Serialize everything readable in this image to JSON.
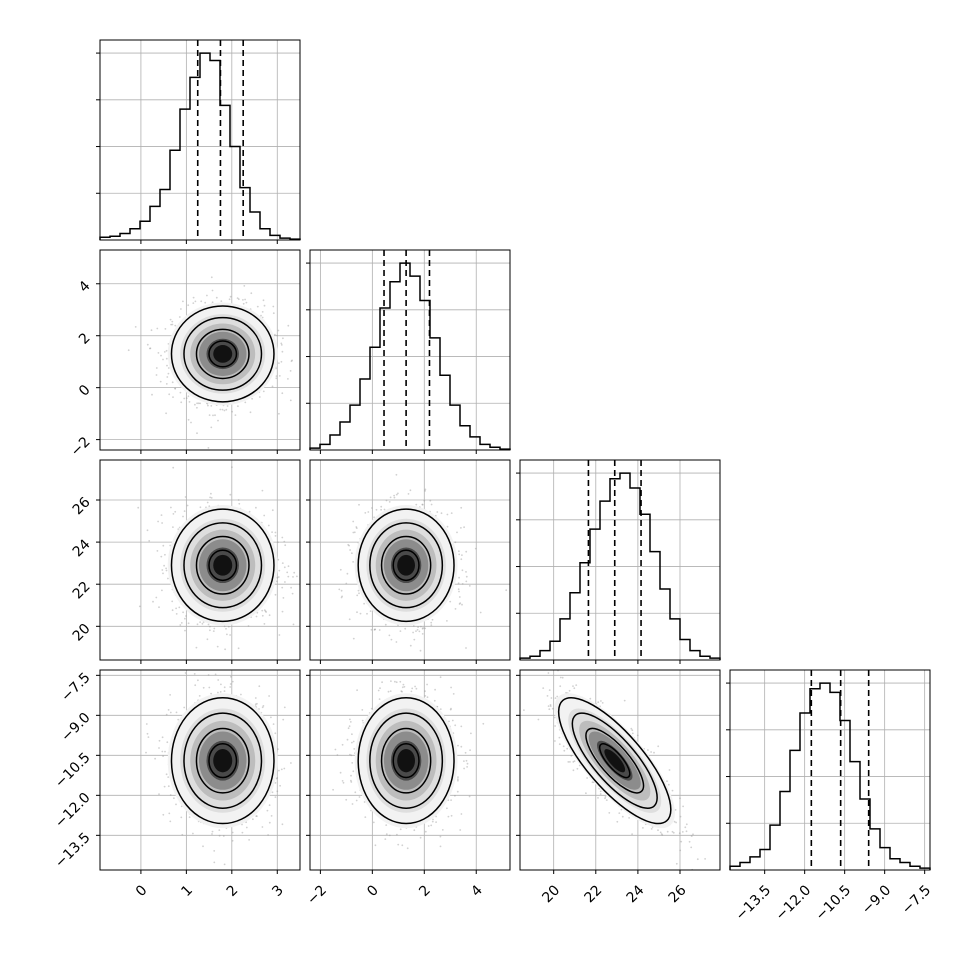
{
  "figure": {
    "background": "#ffffff"
  },
  "chart_data": {
    "type": "corner",
    "grid": true,
    "colors": {
      "axes": "#000000",
      "grid": "#b0b0b0",
      "points": "#9a9a9a",
      "contour": "#000000"
    },
    "parameters": [
      {
        "mean": 1.8,
        "sd": 0.55,
        "range": [
          -0.9,
          3.5
        ],
        "ticks": [
          0,
          1,
          2,
          3
        ],
        "quantiles": [
          1.25,
          1.75,
          2.25
        ]
      },
      {
        "mean": 1.3,
        "sd": 0.9,
        "range": [
          -2.4,
          5.3
        ],
        "ticks": [
          -2,
          0,
          2,
          4
        ],
        "quantiles": [
          0.45,
          1.3,
          2.2
        ]
      },
      {
        "mean": 22.9,
        "sd": 1.3,
        "range": [
          18.4,
          27.9
        ],
        "ticks": [
          20,
          22,
          24,
          26
        ],
        "quantiles": [
          21.65,
          22.9,
          24.15
        ]
      },
      {
        "mean": -10.7,
        "sd": 1.15,
        "range": [
          -14.8,
          -7.3
        ],
        "ticks": [
          -13.5,
          -12.0,
          -10.5,
          -9.0,
          -7.5
        ],
        "quantiles": [
          -11.75,
          -10.65,
          -9.6
        ]
      }
    ],
    "correlations": [
      [
        1,
        0,
        0,
        0
      ],
      [
        0,
        1,
        0,
        0
      ],
      [
        0,
        0,
        1,
        -0.78
      ],
      [
        0,
        0,
        -0.78,
        1
      ]
    ],
    "tick_labels": {
      "p0": [
        "0",
        "1",
        "2",
        "3"
      ],
      "p1": [
        "−2",
        "0",
        "2",
        "4"
      ],
      "p2": [
        "20",
        "22",
        "24",
        "26"
      ],
      "p3": [
        "−13.5",
        "−12.0",
        "−10.5",
        "−9.0",
        "−7.5"
      ]
    },
    "histograms": [
      {
        "bins": 20,
        "counts": [
          0.015,
          0.02,
          0.035,
          0.06,
          0.1,
          0.18,
          0.27,
          0.48,
          0.7,
          0.87,
          1.0,
          0.96,
          0.72,
          0.5,
          0.28,
          0.15,
          0.06,
          0.025,
          0.01,
          0.005
        ]
      },
      {
        "bins": 20,
        "counts": [
          0.01,
          0.03,
          0.08,
          0.15,
          0.24,
          0.38,
          0.55,
          0.76,
          0.9,
          1.0,
          0.93,
          0.8,
          0.6,
          0.4,
          0.24,
          0.13,
          0.07,
          0.03,
          0.015,
          0.005
        ]
      },
      {
        "bins": 20,
        "counts": [
          0.01,
          0.02,
          0.05,
          0.1,
          0.22,
          0.36,
          0.52,
          0.7,
          0.85,
          0.97,
          1.0,
          0.92,
          0.78,
          0.58,
          0.38,
          0.22,
          0.11,
          0.05,
          0.02,
          0.01
        ]
      },
      {
        "bins": 20,
        "counts": [
          0.02,
          0.04,
          0.07,
          0.11,
          0.24,
          0.42,
          0.64,
          0.84,
          0.97,
          1.0,
          0.95,
          0.8,
          0.58,
          0.38,
          0.22,
          0.12,
          0.06,
          0.04,
          0.02,
          0.01
        ]
      }
    ]
  }
}
